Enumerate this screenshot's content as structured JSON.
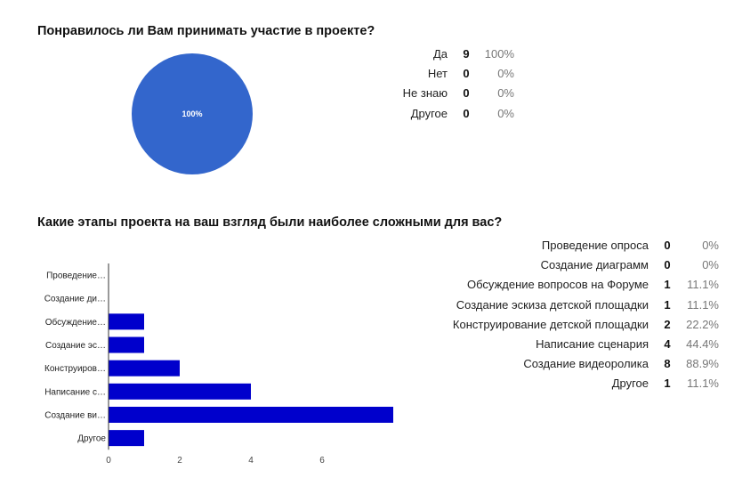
{
  "q1": {
    "title": "Понравилось ли Вам принимать участие в проекте?",
    "chart_data": {
      "type": "pie",
      "categories": [
        "Да",
        "Нет",
        "Не знаю",
        "Другое"
      ],
      "values": [
        9,
        0,
        0,
        0
      ],
      "slice_label": "100%",
      "colors": [
        "#3366cc"
      ]
    },
    "summary": [
      {
        "label": "Да",
        "count": "9",
        "pct": "100%"
      },
      {
        "label": "Нет",
        "count": "0",
        "pct": "0%"
      },
      {
        "label": "Не знаю",
        "count": "0",
        "pct": "0%"
      },
      {
        "label": "Другое",
        "count": "0",
        "pct": "0%"
      }
    ]
  },
  "q2": {
    "title": "Какие этапы проекта на ваш взгляд были наиболее сложными для вас?",
    "chart_data": {
      "type": "bar",
      "orientation": "horizontal",
      "categories": [
        "Проведение…",
        "Создание ди…",
        "Обсуждение…",
        "Создание эс…",
        "Конструиров…",
        "Написание с…",
        "Создание ви…",
        "Другое"
      ],
      "values": [
        0,
        0,
        1,
        1,
        2,
        4,
        8,
        1
      ],
      "xticks": [
        "0",
        "2",
        "4",
        "6"
      ],
      "xlim": [
        0,
        8.1
      ],
      "bar_color": "#0000cc",
      "grid": false
    },
    "summary": [
      {
        "label": "Проведение опроса",
        "count": "0",
        "pct": "0%"
      },
      {
        "label": "Создание диаграмм",
        "count": "0",
        "pct": "0%"
      },
      {
        "label": "Обсуждение вопросов на Форуме",
        "count": "1",
        "pct": "11.1%"
      },
      {
        "label": "Создание эскиза детской площадки",
        "count": "1",
        "pct": "11.1%"
      },
      {
        "label": "Конструирование детской площадки",
        "count": "2",
        "pct": "22.2%"
      },
      {
        "label": "Написание сценария",
        "count": "4",
        "pct": "44.4%"
      },
      {
        "label": "Создание видеоролика",
        "count": "8",
        "pct": "88.9%"
      },
      {
        "label": "Другое",
        "count": "1",
        "pct": "11.1%"
      }
    ]
  }
}
